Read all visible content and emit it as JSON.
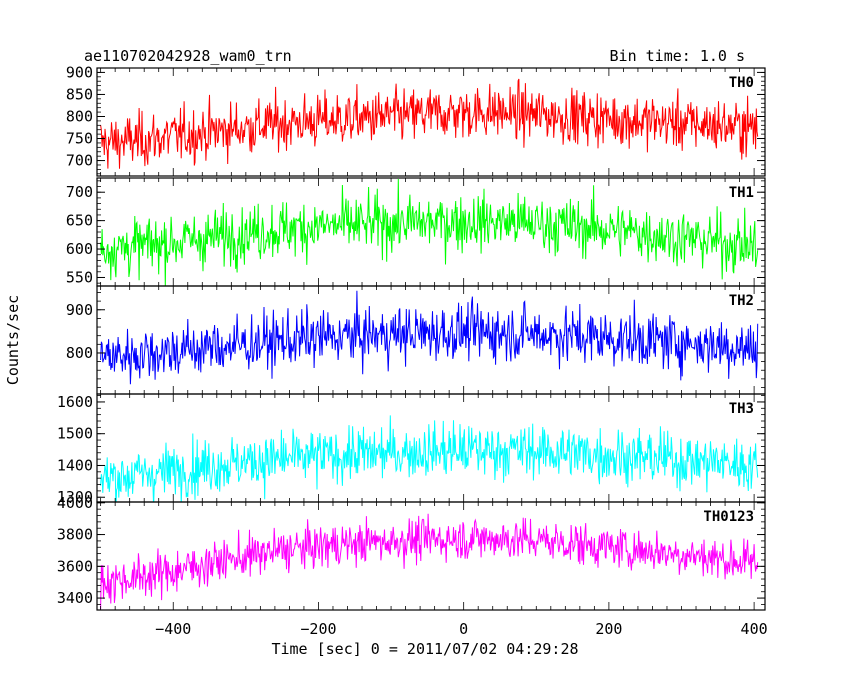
{
  "header": {
    "left": "ae110702042928_wam0_trn",
    "right": "Bin time: 1.0 s"
  },
  "chart_data": {
    "type": "line",
    "xlabel": "Time [sec] 0 = 2011/07/02 04:29:28",
    "ylabel": "Counts/sec",
    "xlim": [
      -505,
      415
    ],
    "xticks": [
      -400,
      -200,
      0,
      200,
      400
    ],
    "xtick_labels": [
      "−400",
      "−200",
      "0",
      "200",
      "400"
    ],
    "bin_time_s": 1.0,
    "grid": false,
    "panels": [
      {
        "name": "TH0",
        "color": "#ff0000",
        "ylim": [
          665,
          910
        ],
        "yticks": [
          700,
          750,
          800,
          850,
          900
        ],
        "trend_x": [
          -500,
          -450,
          -400,
          -350,
          -300,
          -250,
          -200,
          -150,
          -100,
          -50,
          0,
          50,
          100,
          150,
          200,
          250,
          300,
          350,
          400
        ],
        "trend_y": [
          740,
          745,
          755,
          765,
          775,
          785,
          790,
          795,
          800,
          805,
          810,
          810,
          805,
          800,
          795,
          790,
          785,
          780,
          775
        ],
        "noise_sd": 32
      },
      {
        "name": "TH1",
        "color": "#00ff00",
        "ylim": [
          535,
          725
        ],
        "yticks": [
          550,
          600,
          650,
          700
        ],
        "trend_x": [
          -500,
          -450,
          -400,
          -350,
          -300,
          -250,
          -200,
          -150,
          -100,
          -50,
          0,
          50,
          100,
          150,
          200,
          250,
          300,
          350,
          400
        ],
        "trend_y": [
          600,
          605,
          612,
          620,
          628,
          635,
          640,
          643,
          645,
          647,
          648,
          648,
          645,
          640,
          635,
          628,
          620,
          612,
          605
        ],
        "noise_sd": 26
      },
      {
        "name": "TH2",
        "color": "#0000ff",
        "ylim": [
          705,
          955
        ],
        "yticks": [
          800,
          900
        ],
        "trend_x": [
          -500,
          -450,
          -400,
          -350,
          -300,
          -250,
          -200,
          -150,
          -100,
          -50,
          0,
          50,
          100,
          150,
          200,
          250,
          300,
          350,
          400
        ],
        "trend_y": [
          790,
          798,
          805,
          812,
          820,
          828,
          835,
          840,
          843,
          846,
          848,
          848,
          845,
          840,
          835,
          830,
          825,
          818,
          810
        ],
        "noise_sd": 34
      },
      {
        "name": "TH3",
        "color": "#00ffff",
        "ylim": [
          1285,
          1625
        ],
        "yticks": [
          1300,
          1400,
          1500,
          1600
        ],
        "trend_x": [
          -500,
          -450,
          -400,
          -350,
          -300,
          -250,
          -200,
          -150,
          -100,
          -50,
          0,
          50,
          100,
          150,
          200,
          250,
          300,
          350,
          400
        ],
        "trend_y": [
          1360,
          1370,
          1385,
          1400,
          1410,
          1420,
          1428,
          1435,
          1440,
          1445,
          1448,
          1448,
          1445,
          1440,
          1433,
          1425,
          1418,
          1410,
          1400
        ],
        "noise_sd": 45
      },
      {
        "name": "TH0123",
        "color": "#ff00ff",
        "ylim": [
          3325,
          4005
        ],
        "yticks": [
          3400,
          3600,
          3800,
          4000
        ],
        "trend_x": [
          -500,
          -450,
          -400,
          -350,
          -300,
          -250,
          -200,
          -150,
          -100,
          -50,
          0,
          50,
          100,
          150,
          200,
          250,
          300,
          350,
          400
        ],
        "trend_y": [
          3500,
          3530,
          3570,
          3620,
          3660,
          3700,
          3725,
          3745,
          3760,
          3770,
          3775,
          3775,
          3765,
          3745,
          3720,
          3700,
          3680,
          3650,
          3620
        ],
        "noise_sd": 70
      }
    ]
  }
}
